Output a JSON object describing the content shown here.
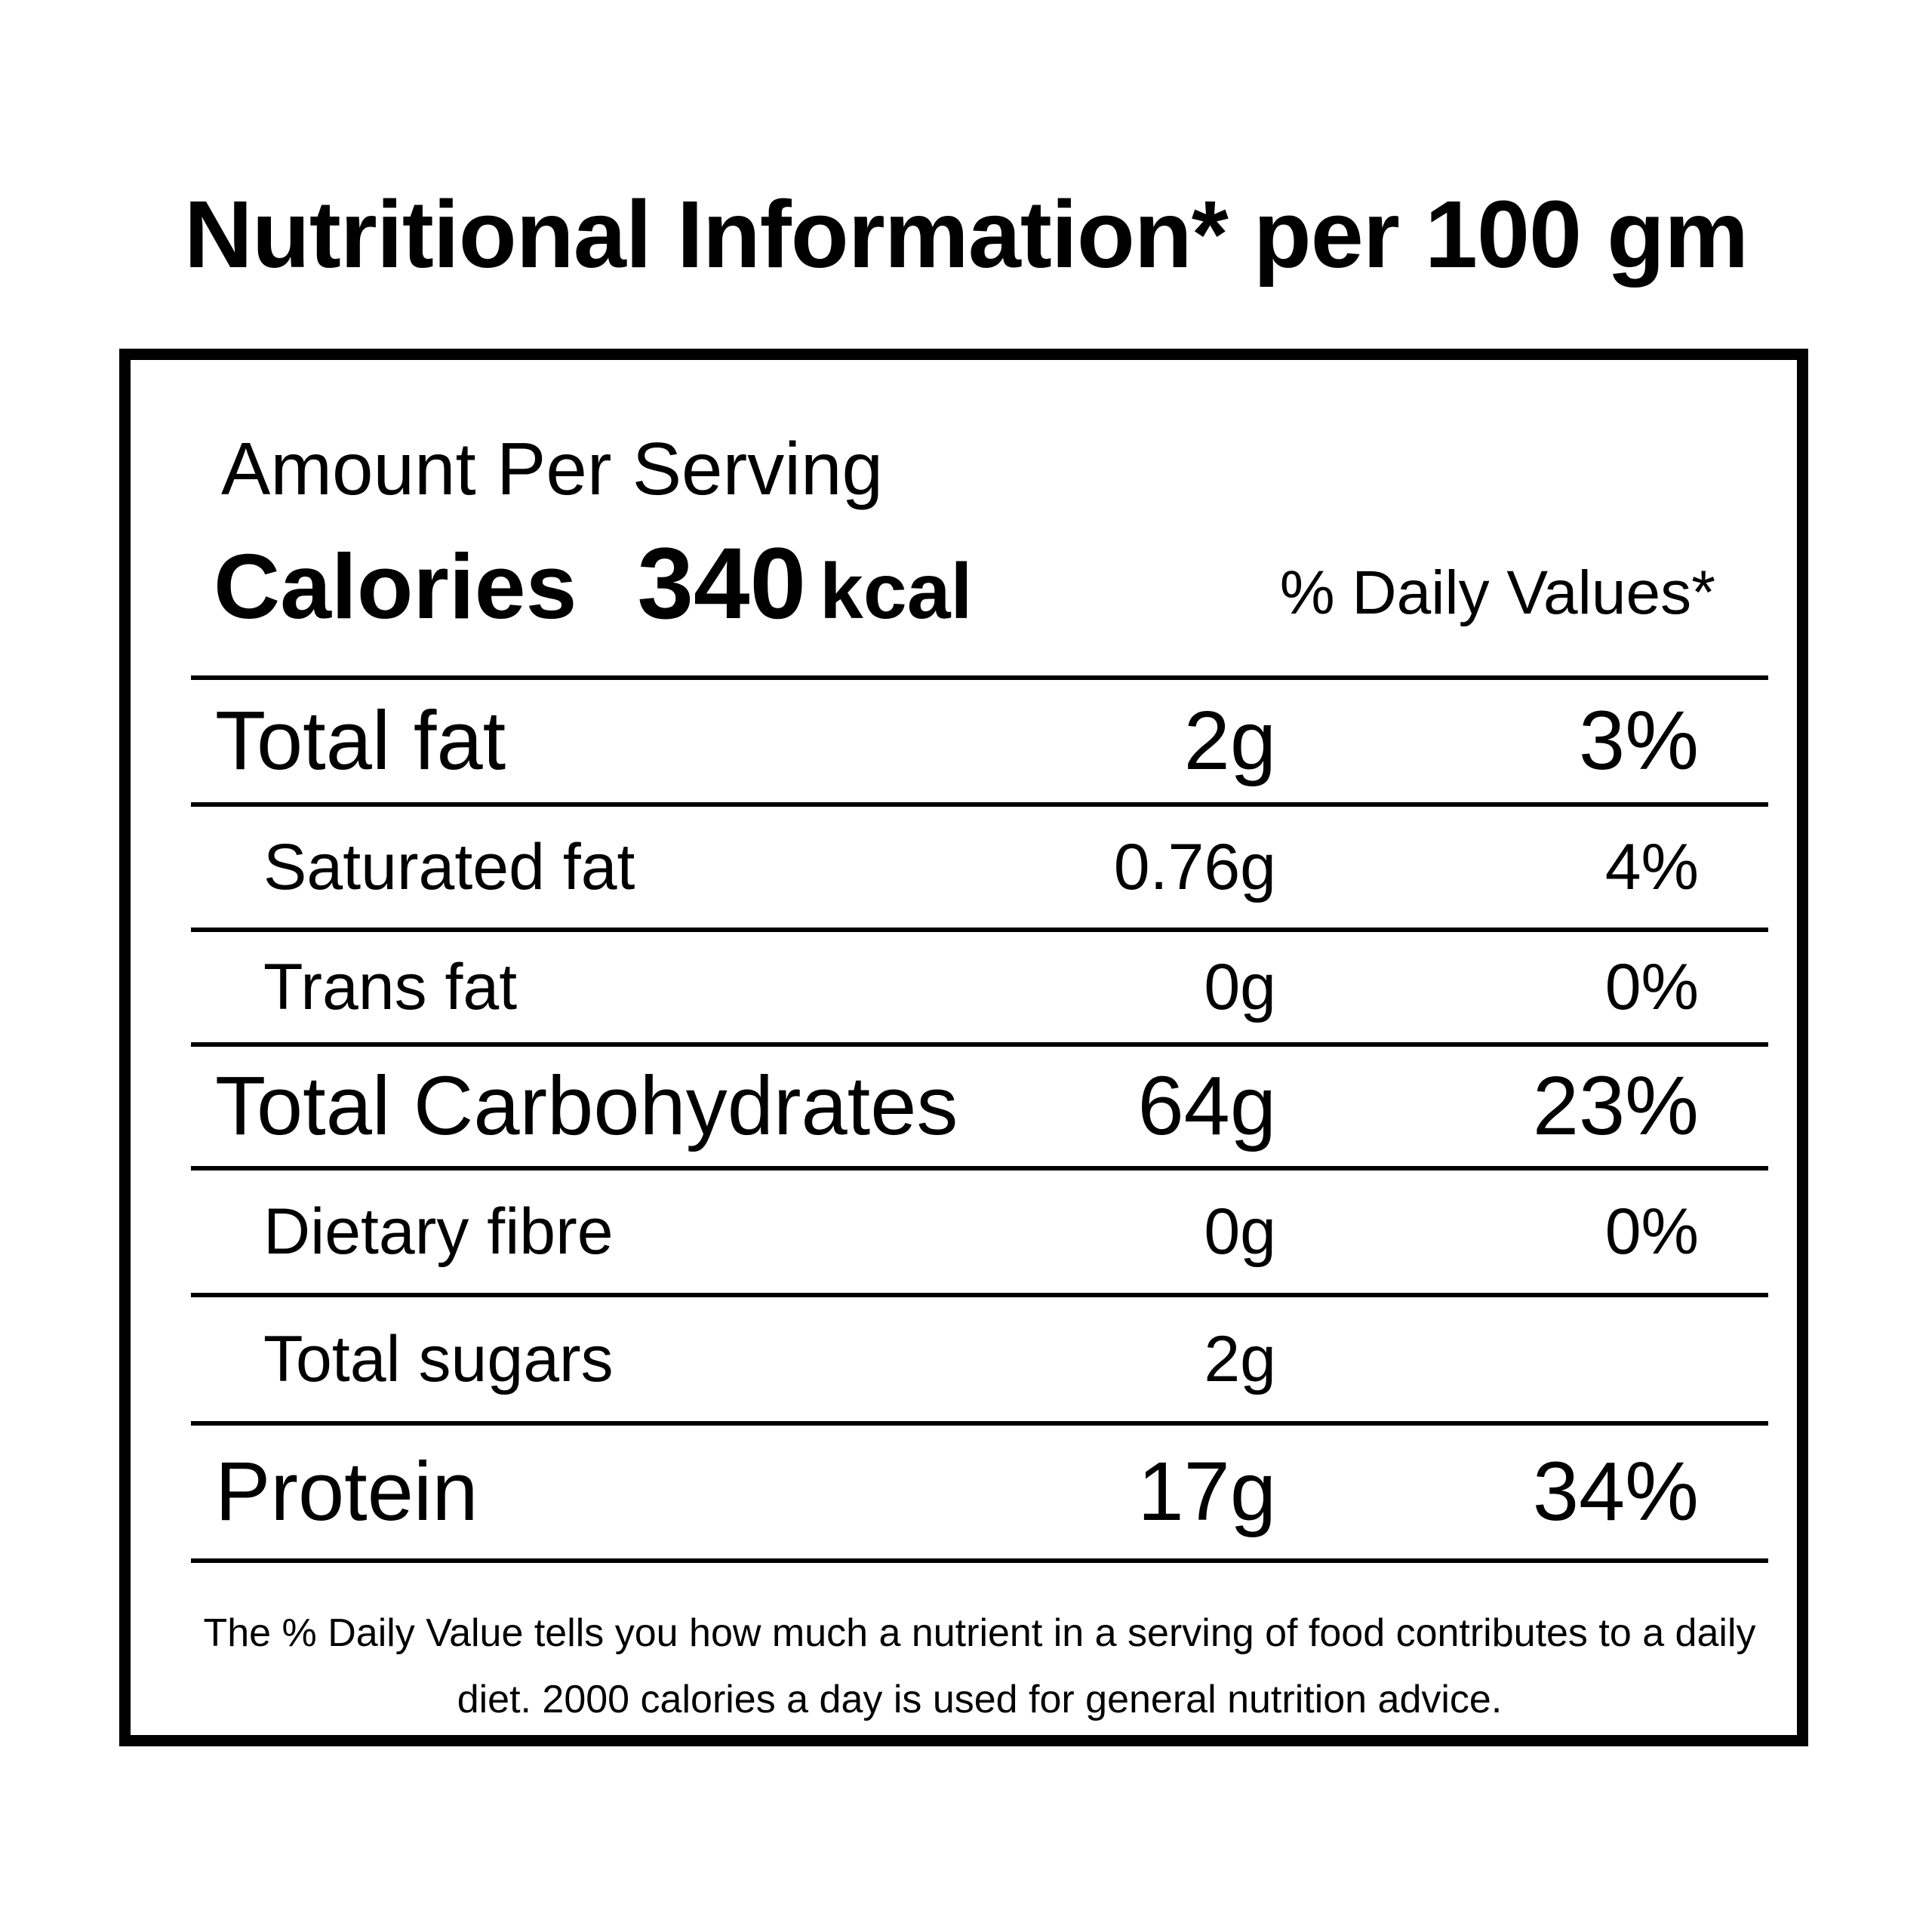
{
  "title": "Nutritional Information* per 100 gm",
  "header": {
    "amount_per_serving": "Amount Per Serving",
    "calories_label": "Calories",
    "calories_value": "340",
    "calories_unit": "kcal",
    "daily_values_label": "% Daily Values*"
  },
  "nutrients": [
    {
      "name": "Total fat",
      "amount": "2g",
      "daily_value": "3%"
    },
    {
      "name": "Saturated fat",
      "amount": "0.76g",
      "daily_value": "4%"
    },
    {
      "name": "Trans fat",
      "amount": "0g",
      "daily_value": "0%"
    },
    {
      "name": "Total Carbohydrates",
      "amount": "64g",
      "daily_value": "23%"
    },
    {
      "name": "Dietary fibre",
      "amount": "0g",
      "daily_value": "0%"
    },
    {
      "name": "Total sugars",
      "amount": "2g",
      "daily_value": ""
    },
    {
      "name": "Protein",
      "amount": "17g",
      "daily_value": "34%"
    }
  ],
  "footnote": "The % Daily Value tells you how much a nutrient in a serving of food contributes to a daily diet. 2000 calories a day is used for general nutrition advice."
}
